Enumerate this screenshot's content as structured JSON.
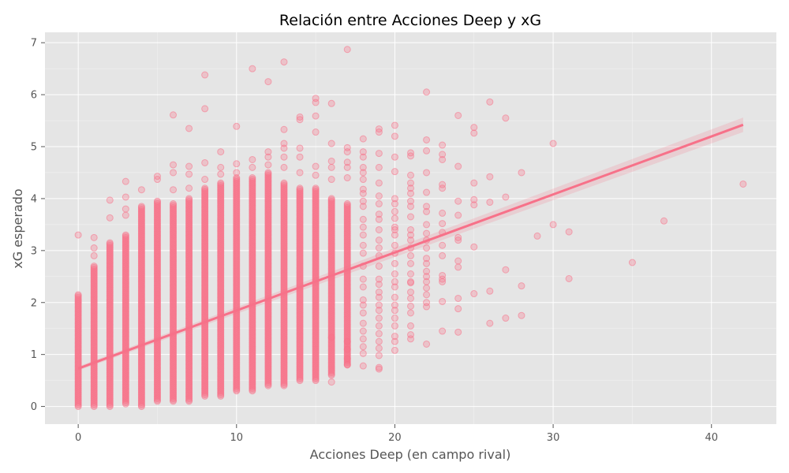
{
  "chart_data": {
    "type": "scatter",
    "title": "Relación entre Acciones Deep y xG",
    "xlabel": "Acciones Deep (en campo rival)",
    "ylabel": "xG esperado",
    "xlim": [
      -2.1,
      44.1
    ],
    "ylim": [
      -0.34,
      7.2
    ],
    "xticks": [
      0,
      10,
      20,
      30,
      40
    ],
    "yticks": [
      0,
      1,
      2,
      3,
      4,
      5,
      6,
      7
    ],
    "grid": true,
    "background_color": "#e5e5e5",
    "point_color": "#f77189",
    "point_opacity": 0.35,
    "regression": {
      "x": [
        0,
        42
      ],
      "y": [
        0.73,
        5.42
      ],
      "color": "#f77189"
    },
    "columns": [
      {
        "x": 0,
        "min": 0.0,
        "max": 2.15
      },
      {
        "x": 1,
        "min": 0.0,
        "max": 2.7
      },
      {
        "x": 2,
        "min": 0.0,
        "max": 3.15
      },
      {
        "x": 3,
        "min": 0.05,
        "max": 3.3
      },
      {
        "x": 4,
        "min": 0.0,
        "max": 3.85
      },
      {
        "x": 5,
        "min": 0.1,
        "max": 3.95
      },
      {
        "x": 6,
        "min": 0.1,
        "max": 3.9
      },
      {
        "x": 7,
        "min": 0.1,
        "max": 4.0
      },
      {
        "x": 8,
        "min": 0.2,
        "max": 4.2
      },
      {
        "x": 9,
        "min": 0.2,
        "max": 4.3
      },
      {
        "x": 10,
        "min": 0.3,
        "max": 4.4
      },
      {
        "x": 11,
        "min": 0.3,
        "max": 4.4
      },
      {
        "x": 12,
        "min": 0.4,
        "max": 4.5
      },
      {
        "x": 13,
        "min": 0.4,
        "max": 4.3
      },
      {
        "x": 14,
        "min": 0.5,
        "max": 4.2
      },
      {
        "x": 15,
        "min": 0.5,
        "max": 4.2
      },
      {
        "x": 16,
        "min": 0.6,
        "max": 4.0
      },
      {
        "x": 17,
        "min": 0.8,
        "max": 3.9
      }
    ],
    "points": [
      [
        0,
        3.3
      ],
      [
        1,
        3.25
      ],
      [
        1,
        3.05
      ],
      [
        1,
        2.9
      ],
      [
        2,
        3.97
      ],
      [
        2,
        3.63
      ],
      [
        3,
        4.33
      ],
      [
        3,
        4.03
      ],
      [
        3,
        3.8
      ],
      [
        3,
        3.68
      ],
      [
        4,
        4.17
      ],
      [
        5,
        4.43
      ],
      [
        5,
        4.37
      ],
      [
        6,
        5.61
      ],
      [
        6,
        4.65
      ],
      [
        6,
        4.5
      ],
      [
        6,
        4.17
      ],
      [
        7,
        5.35
      ],
      [
        7,
        4.62
      ],
      [
        7,
        4.47
      ],
      [
        7,
        4.2
      ],
      [
        8,
        6.38
      ],
      [
        8,
        5.73
      ],
      [
        8,
        4.69
      ],
      [
        8,
        4.37
      ],
      [
        9,
        4.9
      ],
      [
        9,
        4.6
      ],
      [
        9,
        4.47
      ],
      [
        10,
        5.39
      ],
      [
        10,
        4.67
      ],
      [
        10,
        4.5
      ],
      [
        11,
        6.5
      ],
      [
        11,
        4.75
      ],
      [
        11,
        4.6
      ],
      [
        12,
        6.25
      ],
      [
        12,
        4.9
      ],
      [
        12,
        4.8
      ],
      [
        12,
        4.65
      ],
      [
        13,
        6.63
      ],
      [
        13,
        5.33
      ],
      [
        13,
        5.06
      ],
      [
        13,
        4.97
      ],
      [
        13,
        4.8
      ],
      [
        13,
        4.6
      ],
      [
        14,
        5.57
      ],
      [
        14,
        5.52
      ],
      [
        14,
        4.97
      ],
      [
        14,
        4.8
      ],
      [
        14,
        4.5
      ],
      [
        15,
        5.93
      ],
      [
        15,
        5.85
      ],
      [
        15,
        5.59
      ],
      [
        15,
        5.28
      ],
      [
        15,
        4.62
      ],
      [
        15,
        4.45
      ],
      [
        16,
        5.83
      ],
      [
        16,
        5.06
      ],
      [
        16,
        4.72
      ],
      [
        16,
        4.6
      ],
      [
        16,
        4.37
      ],
      [
        16,
        1.33
      ],
      [
        16,
        0.47
      ],
      [
        17,
        6.87
      ],
      [
        17,
        4.98
      ],
      [
        17,
        4.9
      ],
      [
        17,
        4.7
      ],
      [
        17,
        4.6
      ],
      [
        17,
        4.4
      ],
      [
        17,
        0.8
      ],
      [
        17,
        0.92
      ],
      [
        17,
        1.1
      ],
      [
        17,
        1.25
      ],
      [
        18,
        5.15
      ],
      [
        18,
        4.9
      ],
      [
        18,
        4.8
      ],
      [
        18,
        4.6
      ],
      [
        18,
        4.5
      ],
      [
        18,
        4.37
      ],
      [
        18,
        4.18
      ],
      [
        18,
        4.1
      ],
      [
        18,
        3.95
      ],
      [
        18,
        3.85
      ],
      [
        18,
        3.6
      ],
      [
        18,
        3.45
      ],
      [
        18,
        3.3
      ],
      [
        18,
        3.1
      ],
      [
        18,
        2.95
      ],
      [
        18,
        2.7
      ],
      [
        18,
        2.45
      ],
      [
        18,
        2.3
      ],
      [
        18,
        2.05
      ],
      [
        18,
        1.95
      ],
      [
        18,
        1.8
      ],
      [
        18,
        1.6
      ],
      [
        18,
        1.45
      ],
      [
        18,
        1.3
      ],
      [
        18,
        1.15
      ],
      [
        18,
        1.02
      ],
      [
        18,
        0.78
      ],
      [
        19,
        5.34
      ],
      [
        19,
        5.28
      ],
      [
        19,
        4.87
      ],
      [
        19,
        4.6
      ],
      [
        19,
        4.3
      ],
      [
        19,
        4.05
      ],
      [
        19,
        3.9
      ],
      [
        19,
        3.7
      ],
      [
        19,
        3.6
      ],
      [
        19,
        3.4
      ],
      [
        19,
        3.2
      ],
      [
        19,
        3.05
      ],
      [
        19,
        2.9
      ],
      [
        19,
        2.7
      ],
      [
        19,
        2.45
      ],
      [
        19,
        2.35
      ],
      [
        19,
        2.2
      ],
      [
        19,
        2.1
      ],
      [
        19,
        1.95
      ],
      [
        19,
        1.85
      ],
      [
        19,
        1.7
      ],
      [
        19,
        1.55
      ],
      [
        19,
        1.4
      ],
      [
        19,
        1.25
      ],
      [
        19,
        1.12
      ],
      [
        19,
        0.98
      ],
      [
        19,
        0.75
      ],
      [
        19,
        0.72
      ],
      [
        20,
        5.41
      ],
      [
        20,
        5.2
      ],
      [
        20,
        4.8
      ],
      [
        20,
        4.52
      ],
      [
        20,
        4.0
      ],
      [
        20,
        3.9
      ],
      [
        20,
        3.75
      ],
      [
        20,
        3.62
      ],
      [
        20,
        3.45
      ],
      [
        20,
        3.4
      ],
      [
        20,
        3.3
      ],
      [
        20,
        3.1
      ],
      [
        20,
        2.95
      ],
      [
        20,
        2.75
      ],
      [
        20,
        2.55
      ],
      [
        20,
        2.4
      ],
      [
        20,
        2.3
      ],
      [
        20,
        2.1
      ],
      [
        20,
        1.95
      ],
      [
        20,
        1.85
      ],
      [
        20,
        1.7
      ],
      [
        20,
        1.55
      ],
      [
        20,
        1.35
      ],
      [
        20,
        1.25
      ],
      [
        20,
        1.08
      ],
      [
        21,
        4.88
      ],
      [
        21,
        4.82
      ],
      [
        21,
        4.45
      ],
      [
        21,
        4.3
      ],
      [
        21,
        4.2
      ],
      [
        21,
        4.1
      ],
      [
        21,
        3.95
      ],
      [
        21,
        3.85
      ],
      [
        21,
        3.65
      ],
      [
        21,
        3.4
      ],
      [
        21,
        3.3
      ],
      [
        21,
        3.2
      ],
      [
        21,
        3.05
      ],
      [
        21,
        2.9
      ],
      [
        21,
        2.75
      ],
      [
        21,
        2.55
      ],
      [
        21,
        2.4
      ],
      [
        21,
        2.38
      ],
      [
        21,
        2.2
      ],
      [
        21,
        2.08
      ],
      [
        21,
        1.93
      ],
      [
        21,
        1.8
      ],
      [
        21,
        1.55
      ],
      [
        21,
        1.38
      ],
      [
        21,
        1.3
      ],
      [
        22,
        6.05
      ],
      [
        22,
        5.13
      ],
      [
        22,
        4.92
      ],
      [
        22,
        4.5
      ],
      [
        22,
        4.12
      ],
      [
        22,
        3.85
      ],
      [
        22,
        3.75
      ],
      [
        22,
        3.5
      ],
      [
        22,
        3.33
      ],
      [
        22,
        3.2
      ],
      [
        22,
        3.05
      ],
      [
        22,
        2.85
      ],
      [
        22,
        2.75
      ],
      [
        22,
        2.6
      ],
      [
        22,
        2.5
      ],
      [
        22,
        2.4
      ],
      [
        22,
        2.28
      ],
      [
        22,
        2.15
      ],
      [
        22,
        2.0
      ],
      [
        22,
        1.92
      ],
      [
        22,
        1.2
      ],
      [
        23,
        5.03
      ],
      [
        23,
        4.85
      ],
      [
        23,
        4.75
      ],
      [
        23,
        4.27
      ],
      [
        23,
        4.2
      ],
      [
        23,
        3.72
      ],
      [
        23,
        3.52
      ],
      [
        23,
        3.35
      ],
      [
        23,
        3.1
      ],
      [
        23,
        2.9
      ],
      [
        23,
        2.52
      ],
      [
        23,
        2.45
      ],
      [
        23,
        2.4
      ],
      [
        23,
        2.02
      ],
      [
        23,
        1.45
      ],
      [
        24,
        5.6
      ],
      [
        24,
        4.62
      ],
      [
        24,
        3.95
      ],
      [
        24,
        3.68
      ],
      [
        24,
        3.25
      ],
      [
        24,
        3.2
      ],
      [
        24,
        2.8
      ],
      [
        24,
        2.68
      ],
      [
        24,
        2.08
      ],
      [
        24,
        1.88
      ],
      [
        24,
        1.43
      ],
      [
        25,
        5.37
      ],
      [
        25,
        5.26
      ],
      [
        25,
        4.3
      ],
      [
        25,
        3.98
      ],
      [
        25,
        3.88
      ],
      [
        25,
        3.07
      ],
      [
        25,
        2.17
      ],
      [
        26,
        5.86
      ],
      [
        26,
        4.42
      ],
      [
        26,
        3.93
      ],
      [
        26,
        2.22
      ],
      [
        26,
        1.6
      ],
      [
        27,
        5.55
      ],
      [
        27,
        4.03
      ],
      [
        27,
        2.63
      ],
      [
        27,
        1.7
      ],
      [
        28,
        4.5
      ],
      [
        28,
        2.32
      ],
      [
        28,
        1.75
      ],
      [
        29,
        3.28
      ],
      [
        30,
        5.06
      ],
      [
        30,
        3.5
      ],
      [
        31,
        3.36
      ],
      [
        31,
        2.46
      ],
      [
        35,
        2.77
      ],
      [
        37,
        3.57
      ],
      [
        42,
        4.28
      ]
    ]
  }
}
